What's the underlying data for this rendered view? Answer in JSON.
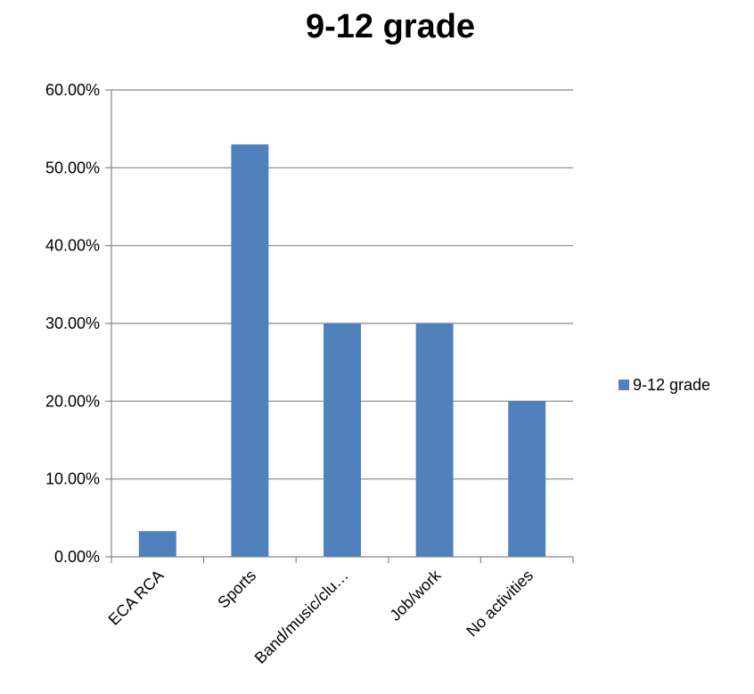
{
  "chart_data": {
    "type": "bar",
    "title": "9-12 grade",
    "xlabel": "",
    "ylabel": "",
    "categories": [
      "ECA RCA",
      "Sports",
      "Band/music/clu…",
      "Job/work",
      "No activities"
    ],
    "series": [
      {
        "name": "9-12 grade",
        "values": [
          0.033,
          0.53,
          0.3,
          0.3,
          0.2
        ]
      }
    ],
    "ylim": [
      0,
      0.6
    ],
    "yticks": [
      0,
      0.1,
      0.2,
      0.3,
      0.4,
      0.5,
      0.6
    ],
    "ytick_labels": [
      "0.00%",
      "10.00%",
      "20.00%",
      "30.00%",
      "40.00%",
      "50.00%",
      "60.00%"
    ],
    "grid": true,
    "legend_position": "right",
    "colors": {
      "bar": "#4F81BD",
      "grid": "#868686",
      "axis": "#868686"
    }
  }
}
